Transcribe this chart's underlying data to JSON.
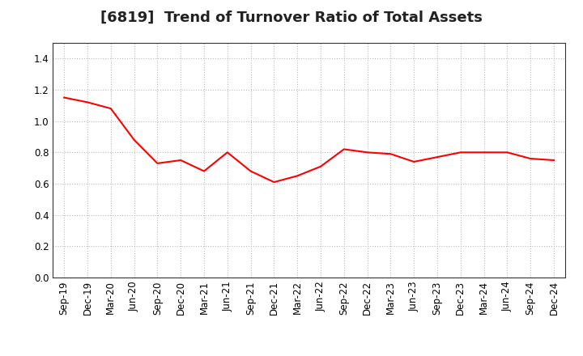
{
  "title": "[6819]  Trend of Turnover Ratio of Total Assets",
  "x_labels": [
    "Sep-19",
    "Dec-19",
    "Mar-20",
    "Jun-20",
    "Sep-20",
    "Dec-20",
    "Mar-21",
    "Jun-21",
    "Sep-21",
    "Dec-21",
    "Mar-22",
    "Jun-22",
    "Sep-22",
    "Dec-22",
    "Mar-23",
    "Jun-23",
    "Sep-23",
    "Dec-23",
    "Mar-24",
    "Jun-24",
    "Sep-24",
    "Dec-24"
  ],
  "y_values": [
    1.15,
    1.12,
    1.08,
    0.88,
    0.73,
    0.75,
    0.68,
    0.8,
    0.68,
    0.61,
    0.65,
    0.71,
    0.82,
    0.8,
    0.79,
    0.74,
    0.77,
    0.8,
    0.8,
    0.8,
    0.76,
    0.75
  ],
  "line_color": "#FF0000",
  "line_width": 1.5,
  "ylim": [
    0.0,
    1.5
  ],
  "yticks": [
    0.0,
    0.2,
    0.4,
    0.6,
    0.8,
    1.0,
    1.2,
    1.4
  ],
  "background_color": "#FFFFFF",
  "plot_bg_color": "#FFFFFF",
  "grid_color": "#BBBBBB",
  "title_fontsize": 13,
  "tick_fontsize": 8.5,
  "title_color": "#222222"
}
